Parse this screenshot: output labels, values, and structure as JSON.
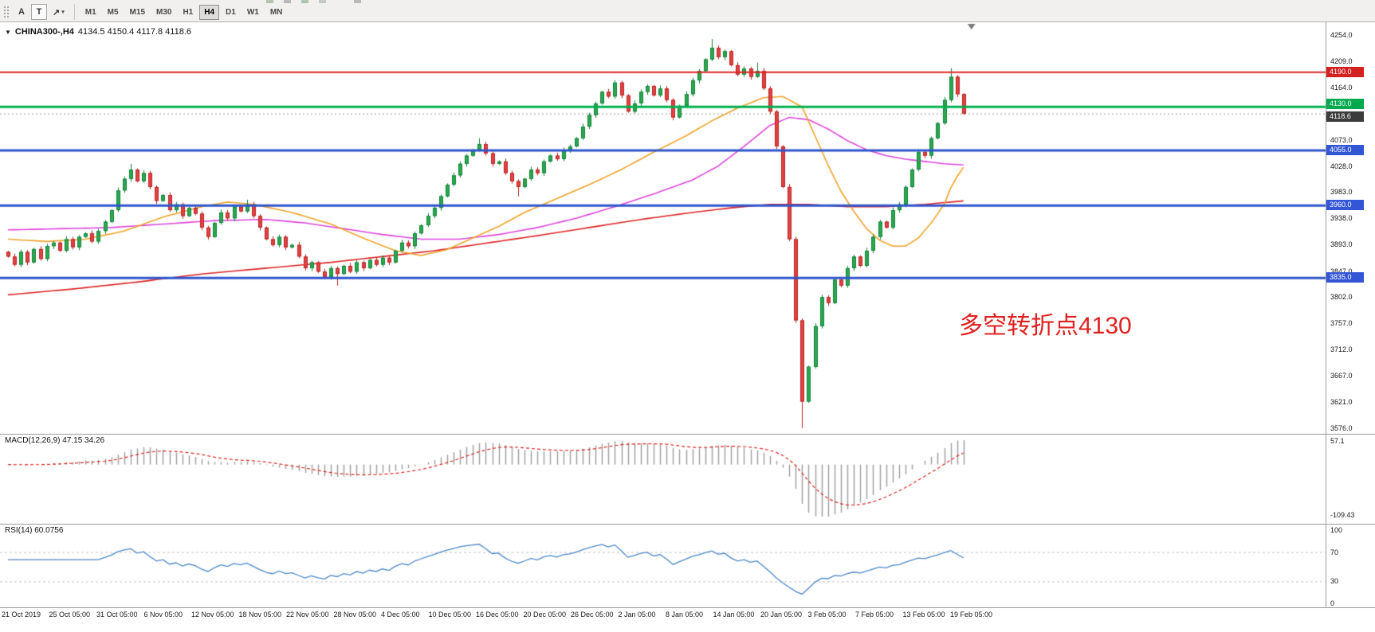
{
  "colors": {
    "up": "#2aa84f",
    "up_border": "#13823b",
    "down": "#e04343",
    "down_border": "#bb2222",
    "ma_fast": "#efa32a",
    "ma_mid": "#dd44dd",
    "ma_slow": "#dd2222",
    "level_red": "#dd2222",
    "level_green": "#00b050",
    "level_blue": "#2f55cc",
    "current_price_line": "#9a9a9a",
    "macd_hist": "#a0a0a0",
    "macd_signal": "#e02020",
    "rsi_line": "#4a86c8",
    "annotation": "#e02020"
  },
  "toolbar": {
    "cursor_button": "A",
    "text_button": "T",
    "timeframes": [
      "M1",
      "M5",
      "M15",
      "M30",
      "H1",
      "H4",
      "D1",
      "W1",
      "MN"
    ],
    "active_timeframe": "H4"
  },
  "main_chart": {
    "symbol": "CHINA300-,H4",
    "ohlc": "4134.5 4150.4 4117.8 4118.6",
    "annotation": "多空转折点4130",
    "axis_min": 3576.0,
    "axis_max": 4254.0,
    "ticks": [
      4254.0,
      4209.0,
      4164.0,
      4119.0,
      4073.0,
      4028.0,
      3983.0,
      3938.0,
      3893.0,
      3847.0,
      3802.0,
      3757.0,
      3712.0,
      3667.0,
      3621.0,
      3576.0
    ],
    "levels": [
      {
        "value": 4190.0,
        "label": "4190.0",
        "type": "red"
      },
      {
        "value": 4130.0,
        "label": "4130.0",
        "type": "green"
      },
      {
        "value": 4055.0,
        "label": "4055.0",
        "type": "blue"
      },
      {
        "value": 3960.0,
        "label": "3960.0",
        "type": "blue"
      },
      {
        "value": 3835.0,
        "label": "3835.0",
        "type": "blue"
      }
    ],
    "current_price": {
      "value": 4118.6,
      "label": "4118.6"
    },
    "first_open": 3880,
    "closes": [
      3872,
      3858,
      3880,
      3862,
      3885,
      3868,
      3890,
      3896,
      3882,
      3902,
      3888,
      3906,
      3912,
      3898,
      3916,
      3932,
      3952,
      3986,
      4006,
      4022,
      4002,
      4016,
      3992,
      3968,
      3978,
      3952,
      3962,
      3942,
      3956,
      3946,
      3922,
      3906,
      3930,
      3948,
      3938,
      3958,
      3950,
      3962,
      3942,
      3922,
      3902,
      3892,
      3906,
      3888,
      3892,
      3872,
      3852,
      3862,
      3846,
      3836,
      3852,
      3842,
      3856,
      3846,
      3862,
      3852,
      3866,
      3858,
      3870,
      3862,
      3882,
      3896,
      3890,
      3912,
      3926,
      3942,
      3956,
      3976,
      3996,
      4012,
      4032,
      4046,
      4056,
      4066,
      4050,
      4032,
      4036,
      4016,
      4002,
      3992,
      4006,
      4022,
      4016,
      4036,
      4046,
      4040,
      4056,
      4062,
      4076,
      4096,
      4116,
      4136,
      4156,
      4148,
      4172,
      4150,
      4122,
      4136,
      4156,
      4166,
      4150,
      4162,
      4142,
      4112,
      4132,
      4152,
      4176,
      4192,
      4212,
      4232,
      4216,
      4226,
      4202,
      4186,
      4196,
      4182,
      4192,
      4162,
      4122,
      4062,
      3992,
      3902,
      3762,
      3622,
      3682,
      3752,
      3802,
      3792,
      3832,
      3822,
      3852,
      3872,
      3856,
      3882,
      3906,
      3932,
      3922,
      3952,
      3962,
      3992,
      4022,
      4052,
      4046,
      4076,
      4102,
      4142,
      4182,
      4152,
      4118.6
    ],
    "wick_high": {
      "19": 4032,
      "37": 3970,
      "73": 4076,
      "109": 4247,
      "116": 4206,
      "146": 4197
    },
    "wick_low": {
      "51": 3822,
      "79": 3976,
      "123": 3576
    },
    "ma_slow": [
      [
        0,
        3806
      ],
      [
        10,
        3816
      ],
      [
        20,
        3828
      ],
      [
        30,
        3842
      ],
      [
        40,
        3852
      ],
      [
        50,
        3862
      ],
      [
        58,
        3872
      ],
      [
        66,
        3882
      ],
      [
        74,
        3895
      ],
      [
        82,
        3908
      ],
      [
        90,
        3922
      ],
      [
        98,
        3936
      ],
      [
        106,
        3948
      ],
      [
        112,
        3956
      ],
      [
        118,
        3962
      ],
      [
        124,
        3962
      ],
      [
        130,
        3958
      ],
      [
        136,
        3958
      ],
      [
        142,
        3962
      ],
      [
        148,
        3968
      ]
    ],
    "ma_mid": [
      [
        0,
        3918
      ],
      [
        8,
        3920
      ],
      [
        16,
        3922
      ],
      [
        24,
        3928
      ],
      [
        32,
        3934
      ],
      [
        40,
        3936
      ],
      [
        46,
        3930
      ],
      [
        52,
        3920
      ],
      [
        58,
        3910
      ],
      [
        64,
        3902
      ],
      [
        70,
        3902
      ],
      [
        76,
        3910
      ],
      [
        82,
        3922
      ],
      [
        88,
        3938
      ],
      [
        94,
        3958
      ],
      [
        100,
        3980
      ],
      [
        106,
        4004
      ],
      [
        110,
        4028
      ],
      [
        114,
        4062
      ],
      [
        118,
        4098
      ],
      [
        121,
        4112
      ],
      [
        124,
        4108
      ],
      [
        127,
        4092
      ],
      [
        130,
        4072
      ],
      [
        133,
        4056
      ],
      [
        136,
        4046
      ],
      [
        139,
        4040
      ],
      [
        142,
        4036
      ],
      [
        145,
        4032
      ],
      [
        148,
        4030
      ]
    ],
    "ma_fast": [
      [
        0,
        3902
      ],
      [
        6,
        3898
      ],
      [
        12,
        3902
      ],
      [
        18,
        3916
      ],
      [
        24,
        3940
      ],
      [
        30,
        3958
      ],
      [
        34,
        3966
      ],
      [
        38,
        3962
      ],
      [
        44,
        3948
      ],
      [
        50,
        3928
      ],
      [
        55,
        3904
      ],
      [
        60,
        3882
      ],
      [
        64,
        3874
      ],
      [
        68,
        3884
      ],
      [
        72,
        3904
      ],
      [
        76,
        3924
      ],
      [
        80,
        3948
      ],
      [
        85,
        3972
      ],
      [
        90,
        3996
      ],
      [
        95,
        4022
      ],
      [
        100,
        4052
      ],
      [
        105,
        4080
      ],
      [
        109,
        4106
      ],
      [
        113,
        4128
      ],
      [
        117,
        4146
      ],
      [
        120,
        4148
      ],
      [
        123,
        4130
      ],
      [
        125,
        4080
      ],
      [
        127,
        4030
      ],
      [
        129,
        3985
      ],
      [
        131,
        3950
      ],
      [
        133,
        3920
      ],
      [
        135,
        3900
      ],
      [
        137,
        3890
      ],
      [
        139,
        3890
      ],
      [
        141,
        3904
      ],
      [
        143,
        3930
      ],
      [
        145,
        3962
      ],
      [
        146,
        3990
      ],
      [
        147,
        4010
      ],
      [
        148,
        4026
      ]
    ]
  },
  "macd": {
    "label": "MACD(12,26,9)",
    "values": "47.15 34.26",
    "axis_max": "57.1",
    "axis_min": "-109.43"
  },
  "rsi": {
    "label": "RSI(14)",
    "value": "60.0756",
    "axis": [
      100,
      70,
      30,
      0
    ],
    "levels": [
      70,
      30
    ]
  },
  "time_axis": [
    "21 Oct 2019",
    "25 Oct 05:00",
    "31 Oct 05:00",
    "6 Nov 05:00",
    "12 Nov 05:00",
    "18 Nov 05:00",
    "22 Nov 05:00",
    "28 Nov 05:00",
    "4 Dec 05:00",
    "10 Dec 05:00",
    "16 Dec 05:00",
    "20 Dec 05:00",
    "26 Dec 05:00",
    "2 Jan 05:00",
    "8 Jan 05:00",
    "14 Jan 05:00",
    "20 Jan 05:00",
    "3 Feb 05:00",
    "7 Feb 05:00",
    "13 Feb 05:00",
    "19 Feb 05:00"
  ]
}
